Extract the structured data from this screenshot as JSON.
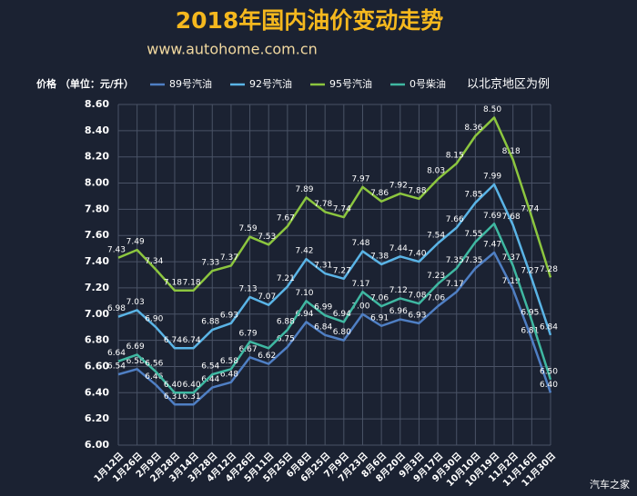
{
  "chart_data": {
    "type": "line",
    "title": "2018年国内油价变动走势",
    "subtitle": "www.autohome.com.cn",
    "y_label": "价格 （单位：元/升）",
    "note": "以北京地区为例",
    "watermark": "汽车之家",
    "categories": [
      "1月12日",
      "1月26日",
      "2月9日",
      "2月28日",
      "3月14日",
      "3月28日",
      "4月12日",
      "4月26日",
      "5月11日",
      "5月25日",
      "6月8日",
      "6月25日",
      "7月9日",
      "7月23日",
      "8月6日",
      "8月20日",
      "9月3日",
      "9月17日",
      "9月30日",
      "10月10日",
      "10月19日",
      "11月2日",
      "11月16日",
      "11月30日"
    ],
    "series": [
      {
        "name": "89号汽油",
        "color": "#4f7fc4",
        "values": [
          6.54,
          6.58,
          6.46,
          6.31,
          6.31,
          6.44,
          6.48,
          6.67,
          6.62,
          6.75,
          6.94,
          6.84,
          6.8,
          7.0,
          6.91,
          6.96,
          6.93,
          7.06,
          7.17,
          7.35,
          7.47,
          7.19,
          6.81,
          6.4
        ],
        "value_labels": [
          "6.54",
          "6.58",
          "6.46",
          "6.31",
          "6.31",
          "6.44",
          "6.48",
          "6.67",
          "6.62",
          "6.75",
          "6.94",
          "6.84",
          "6.80",
          "7.00",
          "6.91",
          "6.96",
          "6.93",
          "7.06",
          "7.17",
          "7.35",
          "7.47",
          "7.19",
          "6.81",
          "6.40"
        ]
      },
      {
        "name": "92号汽油",
        "color": "#5ab4e6",
        "values": [
          6.98,
          7.03,
          6.9,
          6.74,
          6.74,
          6.88,
          6.93,
          7.13,
          7.07,
          7.21,
          7.42,
          7.31,
          7.27,
          7.48,
          7.38,
          7.44,
          7.4,
          7.54,
          7.66,
          7.85,
          7.99,
          7.68,
          7.27,
          6.84
        ],
        "value_labels": [
          "6.98",
          "7.03",
          "6.90",
          "6.74",
          "6.74",
          "6.88",
          "6.93",
          "7.13",
          "7.07",
          "7.21",
          "7.42",
          "7.31",
          "7.27",
          "7.48",
          "7.38",
          "7.44",
          "7.40",
          "7.54",
          "7.66",
          "7.85",
          "7.99",
          "7.68",
          "7.27",
          "6.84"
        ]
      },
      {
        "name": "95号汽油",
        "color": "#8cc63f",
        "values": [
          7.43,
          7.49,
          7.34,
          7.18,
          7.18,
          7.33,
          7.37,
          7.59,
          7.53,
          7.67,
          7.89,
          7.78,
          7.74,
          7.97,
          7.86,
          7.92,
          7.88,
          8.03,
          8.15,
          8.36,
          8.5,
          8.18,
          7.74,
          7.28
        ],
        "value_labels": [
          "7.43",
          "7.49",
          "7.34",
          "7.18",
          "7.18",
          "7.33",
          "7.37",
          "7.59",
          "7.53",
          "7.67",
          "7.89",
          "7.78",
          "7.74",
          "7.97",
          "7.86",
          "7.92",
          "7.88",
          "8.03",
          "8.15",
          "8.36",
          "8.50",
          "8.18",
          "7.74",
          "7.28"
        ]
      },
      {
        "name": "0号柴油",
        "color": "#3fb8a2",
        "values": [
          6.64,
          6.69,
          6.56,
          6.4,
          6.4,
          6.54,
          6.58,
          6.79,
          6.74,
          6.88,
          7.1,
          6.99,
          6.94,
          7.17,
          7.06,
          7.12,
          7.08,
          7.23,
          7.35,
          7.55,
          7.69,
          7.37,
          6.95,
          6.5
        ],
        "value_labels": [
          "6.64",
          "6.69",
          "6.56",
          "6.40",
          "6.40",
          "6.54",
          "6.58",
          "6.79",
          null,
          "6.88",
          "7.10",
          "6.99",
          "6.94",
          "7.17",
          "7.06",
          "7.12",
          "7.08",
          "7.23",
          "7.35",
          "7.55",
          "7.69",
          "7.37",
          "6.95",
          "6.50"
        ]
      }
    ],
    "ylim": [
      6.0,
      8.6
    ],
    "yticks": [
      {
        "value": 6.0,
        "label": "6.00"
      },
      {
        "value": 6.2,
        "label": "6.20"
      },
      {
        "value": 6.4,
        "label": "6.40"
      },
      {
        "value": 6.6,
        "label": "6.60"
      },
      {
        "value": 6.8,
        "label": "6.80"
      },
      {
        "value": 7.0,
        "label": "7.00"
      },
      {
        "value": 7.2,
        "label": "7.20"
      },
      {
        "value": 7.4,
        "label": "7.40"
      },
      {
        "value": 7.6,
        "label": "7.60"
      },
      {
        "value": 7.8,
        "label": "7.80"
      },
      {
        "value": 8.0,
        "label": "8.00"
      },
      {
        "value": 8.2,
        "label": "8.20"
      },
      {
        "value": 8.4,
        "label": "8.40"
      },
      {
        "value": 8.6,
        "label": "8.60"
      }
    ],
    "grid": true
  }
}
